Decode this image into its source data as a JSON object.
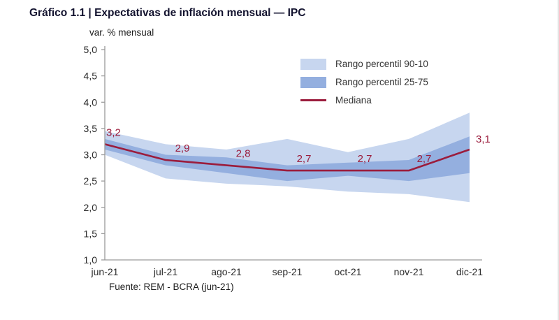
{
  "header": {
    "title": "Gráfico 1.1 | Expectativas de inflación mensual — IPC",
    "subtitle": "var. % mensual"
  },
  "footer": {
    "source": "Fuente: REM - BCRA (jun-21)"
  },
  "legend": {
    "items": [
      {
        "label": "Rango percentil 90-10",
        "color": "#c7d6ef",
        "kind": "band"
      },
      {
        "label": "Rango percentil 25-75",
        "color": "#94afdf",
        "kind": "band"
      },
      {
        "label": "Mediana",
        "color": "#9b1c3c",
        "kind": "line"
      }
    ]
  },
  "chart_data": {
    "type": "area",
    "title": "Expectativas de inflación mensual — IPC",
    "ylabel": "var. % mensual",
    "x": [
      "jun-21",
      "jul-21",
      "ago-21",
      "sep-21",
      "oct-21",
      "nov-21",
      "dic-21"
    ],
    "series": [
      {
        "name": "Rango percentil 90-10",
        "role": "band",
        "upper": [
          3.45,
          3.2,
          3.1,
          3.3,
          3.05,
          3.3,
          3.8
        ],
        "lower": [
          3.0,
          2.55,
          2.45,
          2.4,
          2.3,
          2.25,
          2.1
        ],
        "color": "#c7d6ef"
      },
      {
        "name": "Rango percentil 25-75",
        "role": "band",
        "upper": [
          3.3,
          3.0,
          2.95,
          2.8,
          2.85,
          2.9,
          3.35
        ],
        "lower": [
          3.1,
          2.8,
          2.65,
          2.5,
          2.6,
          2.5,
          2.65
        ],
        "color": "#94afdf"
      },
      {
        "name": "Mediana",
        "role": "line",
        "values": [
          3.2,
          2.9,
          2.8,
          2.7,
          2.7,
          2.7,
          3.1
        ],
        "color": "#9b1c3c"
      }
    ],
    "point_labels": [
      "3,2",
      "2,9",
      "2,8",
      "2,7",
      "2,7",
      "2,7",
      "3,1"
    ],
    "ylim": [
      1.0,
      5.0
    ],
    "ytick_step": 0.5,
    "ytick_labels": [
      "1,0",
      "1,5",
      "2,0",
      "2,5",
      "3,0",
      "3,5",
      "4,0",
      "4,5",
      "5,0"
    ],
    "grid": false,
    "legend_position": "top-right-inside",
    "axis_color": "#9a9a9a"
  }
}
